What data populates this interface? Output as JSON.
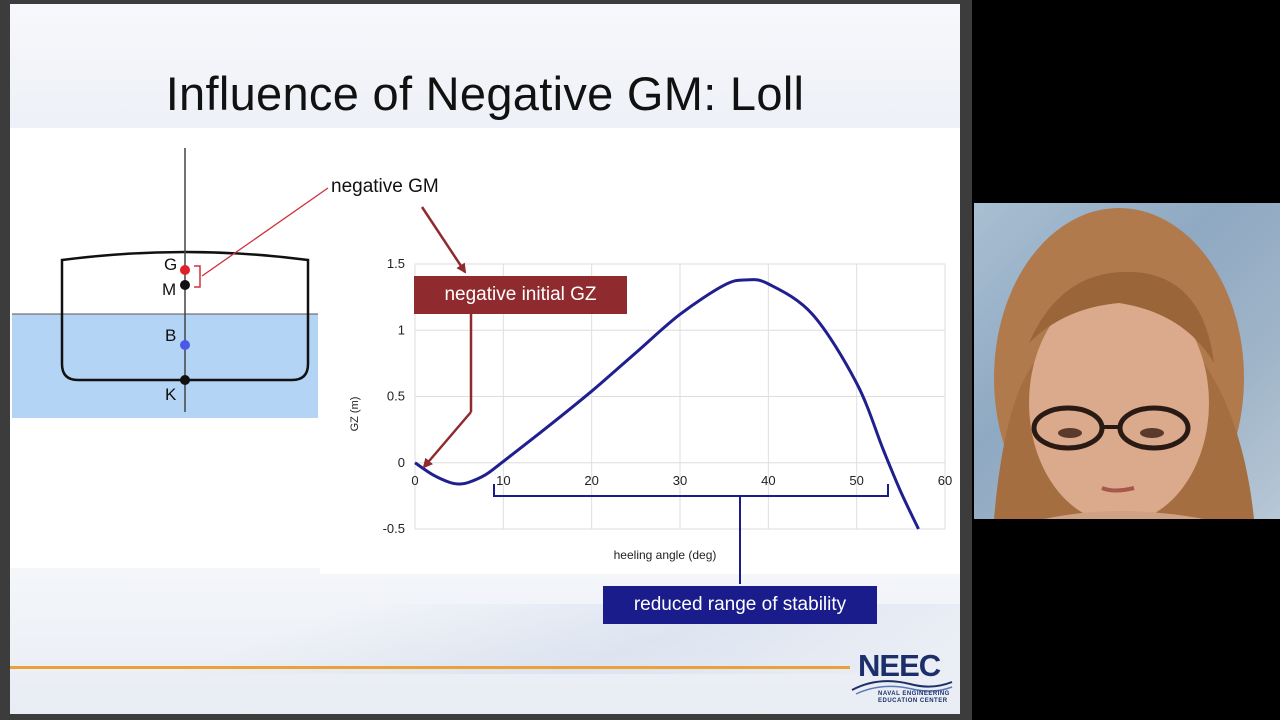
{
  "slide": {
    "title": "Influence of Negative GM: Loll",
    "labels": {
      "negative_gm": "negative GM",
      "negative_initial_gz": "negative initial GZ",
      "reduced_range": "reduced range of stability"
    },
    "ship": {
      "points": [
        "G",
        "M",
        "B",
        "K"
      ]
    },
    "logo": {
      "name": "NEEC",
      "line1": "NAVAL ENGINEERING",
      "line2": "EDUCATION CENTER"
    }
  },
  "chart_data": {
    "type": "line",
    "title": "",
    "xlabel": "heeling angle (deg)",
    "ylabel": "GZ (m)",
    "xlim": [
      0,
      60
    ],
    "ylim": [
      -0.5,
      1.5
    ],
    "xticks": [
      "0",
      "10",
      "20",
      "30",
      "40",
      "50",
      "60"
    ],
    "yticks": [
      "-0.5",
      "0",
      "0.5",
      "1",
      "1.5"
    ],
    "grid": true,
    "series": [
      {
        "color": "#1f1f8f",
        "x": [
          0,
          2,
          4,
          5,
          6,
          8,
          10,
          15,
          20,
          25,
          30,
          35,
          37.5,
          40,
          45,
          50,
          53,
          55,
          57
        ],
        "y": [
          0,
          -0.09,
          -0.15,
          -0.16,
          -0.15,
          -0.09,
          0.01,
          0.27,
          0.54,
          0.83,
          1.12,
          1.34,
          1.38,
          1.35,
          1.12,
          0.6,
          0.1,
          -0.22,
          -0.5
        ]
      }
    ]
  },
  "colors": {
    "red_callout": "#8f2b2f",
    "blue_callout": "#1a1c8c",
    "curve": "#1f1f8f",
    "water": "#b3d4f5",
    "accent_line": "#e8a239"
  }
}
